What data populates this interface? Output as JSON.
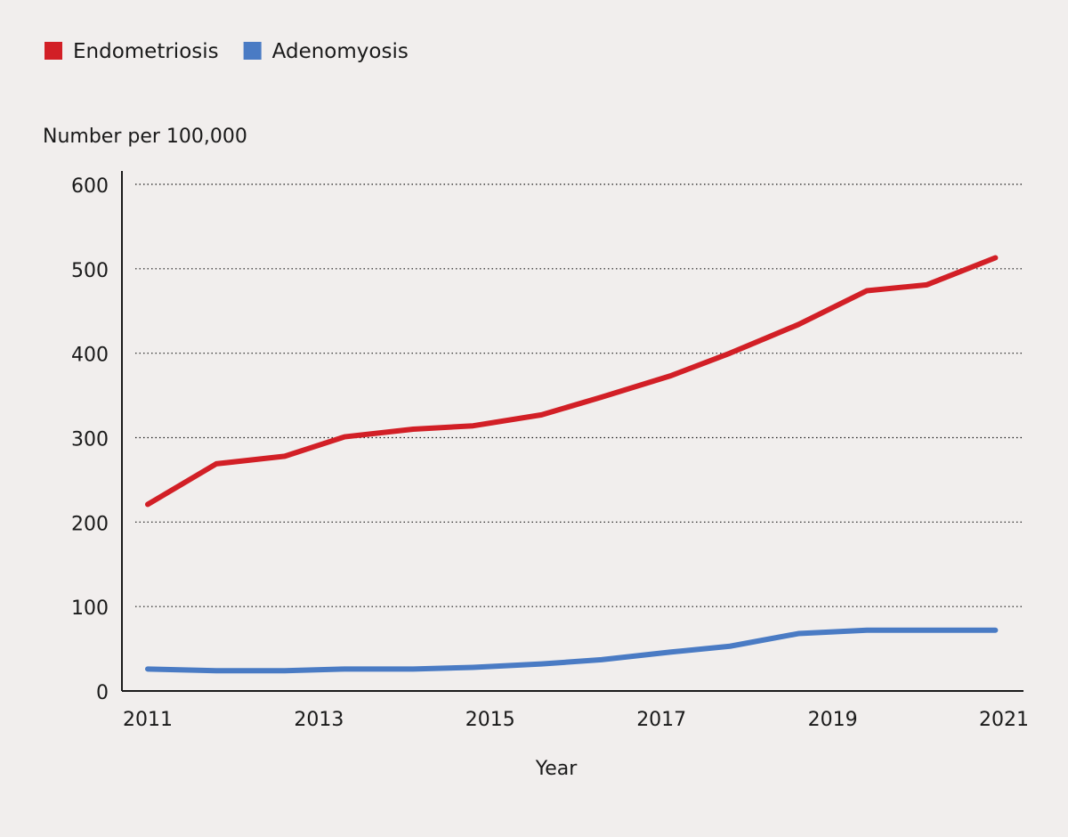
{
  "legend": {
    "items": [
      {
        "label": "Endometriosis",
        "color": "#d21f26"
      },
      {
        "label": "Adenomyosis",
        "color": "#4a7bc4"
      }
    ]
  },
  "colors": {
    "background": "#f1eeed",
    "axis": "#1a1a1a",
    "grid": "#1a1a1a"
  },
  "chart_data": {
    "type": "line",
    "title": "",
    "ylabel": "Number per 100,000",
    "xlabel": "Year",
    "xlim": [
      2011,
      2021
    ],
    "ylim": [
      0,
      600
    ],
    "x_ticks": [
      "2011",
      "2013",
      "2015",
      "2017",
      "2019",
      "2021"
    ],
    "x_tick_values": [
      2011,
      2013,
      2015,
      2017,
      2019,
      2021
    ],
    "y_ticks": [
      "0",
      "100",
      "200",
      "300",
      "400",
      "500",
      "600"
    ],
    "y_tick_values": [
      0,
      100,
      200,
      300,
      400,
      500,
      600
    ],
    "grid": "horizontal dotted",
    "legend_position": "top-left",
    "x": [
      2011,
      2011.8,
      2012.6,
      2013.3,
      2014.1,
      2014.8,
      2015.6,
      2016.3,
      2017.1,
      2017.8,
      2018.6,
      2019.4,
      2020.1,
      2020.9
    ],
    "series": [
      {
        "name": "Endometriosis",
        "color": "#d21f26",
        "values": [
          221,
          269,
          278,
          301,
          310,
          314,
          327,
          348,
          373,
          400,
          434,
          474,
          481,
          513
        ]
      },
      {
        "name": "Adenomyosis",
        "color": "#4a7bc4",
        "values": [
          26,
          24,
          24,
          26,
          26,
          28,
          32,
          37,
          46,
          53,
          68,
          72,
          72,
          72
        ]
      }
    ]
  }
}
